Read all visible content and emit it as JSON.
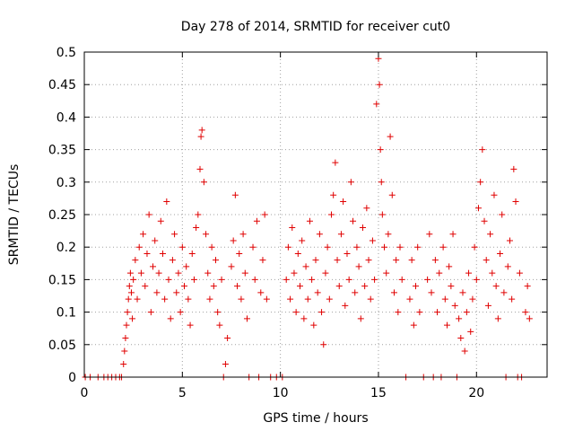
{
  "chart_data": {
    "type": "scatter",
    "title": "Day 278 of 2014, SRMTID for receiver cut0",
    "xlabel": "GPS time / hours",
    "ylabel": "SRMTID / TECUs",
    "xlim": [
      0,
      23.6
    ],
    "ylim": [
      0,
      0.5
    ],
    "xticks": [
      0,
      5,
      10,
      15,
      20
    ],
    "xtick_labels": [
      "0",
      "5",
      "10",
      "15",
      "20"
    ],
    "yticks": [
      0,
      0.05,
      0.1,
      0.15,
      0.2,
      0.25,
      0.3,
      0.35,
      0.4,
      0.45,
      0.5
    ],
    "ytick_labels": [
      "0",
      "0.05",
      "0.1",
      "0.15",
      "0.2",
      "0.25",
      "0.3",
      "0.35",
      "0.4",
      "0.45",
      "0.5"
    ],
    "grid": true,
    "marker": "+",
    "color": "#e00000",
    "series": [
      {
        "name": "SRMTID",
        "points": [
          [
            0.05,
            0
          ],
          [
            0.3,
            0
          ],
          [
            0.7,
            0
          ],
          [
            1.0,
            0
          ],
          [
            1.2,
            0
          ],
          [
            1.4,
            0
          ],
          [
            1.6,
            0
          ],
          [
            1.8,
            0
          ],
          [
            1.9,
            0
          ],
          [
            2.0,
            0.02
          ],
          [
            2.05,
            0.04
          ],
          [
            2.1,
            0.06
          ],
          [
            2.15,
            0.08
          ],
          [
            2.2,
            0.1
          ],
          [
            2.25,
            0.12
          ],
          [
            2.3,
            0.14
          ],
          [
            2.35,
            0.16
          ],
          [
            2.4,
            0.13
          ],
          [
            2.45,
            0.09
          ],
          [
            2.5,
            0.15
          ],
          [
            2.6,
            0.18
          ],
          [
            2.7,
            0.12
          ],
          [
            2.8,
            0.2
          ],
          [
            2.9,
            0.16
          ],
          [
            3.0,
            0.22
          ],
          [
            3.1,
            0.14
          ],
          [
            3.2,
            0.19
          ],
          [
            3.3,
            0.25
          ],
          [
            3.4,
            0.1
          ],
          [
            3.5,
            0.17
          ],
          [
            3.6,
            0.21
          ],
          [
            3.7,
            0.13
          ],
          [
            3.8,
            0.16
          ],
          [
            3.9,
            0.24
          ],
          [
            4.0,
            0.19
          ],
          [
            4.1,
            0.12
          ],
          [
            4.2,
            0.27
          ],
          [
            4.3,
            0.15
          ],
          [
            4.4,
            0.09
          ],
          [
            4.5,
            0.18
          ],
          [
            4.6,
            0.22
          ],
          [
            4.7,
            0.13
          ],
          [
            4.8,
            0.16
          ],
          [
            4.9,
            0.1
          ],
          [
            5.0,
            0.2
          ],
          [
            5.1,
            0.14
          ],
          [
            5.2,
            0.17
          ],
          [
            5.3,
            0.12
          ],
          [
            5.4,
            0.08
          ],
          [
            5.5,
            0.19
          ],
          [
            5.6,
            0.15
          ],
          [
            5.7,
            0.23
          ],
          [
            5.8,
            0.25
          ],
          [
            5.9,
            0.32
          ],
          [
            5.95,
            0.37
          ],
          [
            6.0,
            0.38
          ],
          [
            6.1,
            0.3
          ],
          [
            6.2,
            0.22
          ],
          [
            6.3,
            0.16
          ],
          [
            6.4,
            0.12
          ],
          [
            6.5,
            0.2
          ],
          [
            6.6,
            0.14
          ],
          [
            6.7,
            0.18
          ],
          [
            6.8,
            0.1
          ],
          [
            6.9,
            0.08
          ],
          [
            7.0,
            0.15
          ],
          [
            7.1,
            0.0
          ],
          [
            7.2,
            0.02
          ],
          [
            7.3,
            0.06
          ],
          [
            7.5,
            0.17
          ],
          [
            7.6,
            0.21
          ],
          [
            7.7,
            0.28
          ],
          [
            7.8,
            0.14
          ],
          [
            7.9,
            0.19
          ],
          [
            8.0,
            0.12
          ],
          [
            8.1,
            0.22
          ],
          [
            8.2,
            0.16
          ],
          [
            8.3,
            0.09
          ],
          [
            8.4,
            0.0
          ],
          [
            8.6,
            0.2
          ],
          [
            8.7,
            0.15
          ],
          [
            8.8,
            0.24
          ],
          [
            8.9,
            0.0
          ],
          [
            9.0,
            0.13
          ],
          [
            9.1,
            0.18
          ],
          [
            9.2,
            0.25
          ],
          [
            9.3,
            0.12
          ],
          [
            9.5,
            0.0
          ],
          [
            9.8,
            0.0
          ],
          [
            10.1,
            0.0
          ],
          [
            10.3,
            0.15
          ],
          [
            10.4,
            0.2
          ],
          [
            10.5,
            0.12
          ],
          [
            10.6,
            0.23
          ],
          [
            10.7,
            0.16
          ],
          [
            10.8,
            0.1
          ],
          [
            10.9,
            0.19
          ],
          [
            11.0,
            0.14
          ],
          [
            11.1,
            0.21
          ],
          [
            11.2,
            0.09
          ],
          [
            11.3,
            0.17
          ],
          [
            11.4,
            0.12
          ],
          [
            11.5,
            0.24
          ],
          [
            11.6,
            0.15
          ],
          [
            11.7,
            0.08
          ],
          [
            11.8,
            0.18
          ],
          [
            11.9,
            0.13
          ],
          [
            12.0,
            0.22
          ],
          [
            12.1,
            0.1
          ],
          [
            12.2,
            0.05
          ],
          [
            12.3,
            0.16
          ],
          [
            12.4,
            0.2
          ],
          [
            12.5,
            0.12
          ],
          [
            12.6,
            0.25
          ],
          [
            12.7,
            0.28
          ],
          [
            12.8,
            0.33
          ],
          [
            12.9,
            0.18
          ],
          [
            13.0,
            0.14
          ],
          [
            13.1,
            0.22
          ],
          [
            13.2,
            0.27
          ],
          [
            13.3,
            0.11
          ],
          [
            13.4,
            0.19
          ],
          [
            13.5,
            0.15
          ],
          [
            13.6,
            0.3
          ],
          [
            13.7,
            0.24
          ],
          [
            13.8,
            0.13
          ],
          [
            13.9,
            0.2
          ],
          [
            14.0,
            0.17
          ],
          [
            14.1,
            0.09
          ],
          [
            14.2,
            0.23
          ],
          [
            14.3,
            0.14
          ],
          [
            14.4,
            0.26
          ],
          [
            14.5,
            0.18
          ],
          [
            14.6,
            0.12
          ],
          [
            14.7,
            0.21
          ],
          [
            14.8,
            0.15
          ],
          [
            14.9,
            0.42
          ],
          [
            15.0,
            0.49
          ],
          [
            15.05,
            0.45
          ],
          [
            15.1,
            0.35
          ],
          [
            15.15,
            0.3
          ],
          [
            15.2,
            0.25
          ],
          [
            15.3,
            0.2
          ],
          [
            15.4,
            0.16
          ],
          [
            15.5,
            0.22
          ],
          [
            15.6,
            0.37
          ],
          [
            15.7,
            0.28
          ],
          [
            15.8,
            0.13
          ],
          [
            15.9,
            0.18
          ],
          [
            16.0,
            0.1
          ],
          [
            16.1,
            0.2
          ],
          [
            16.2,
            0.15
          ],
          [
            16.4,
            0.0
          ],
          [
            16.6,
            0.12
          ],
          [
            16.7,
            0.18
          ],
          [
            16.8,
            0.08
          ],
          [
            16.9,
            0.14
          ],
          [
            17.0,
            0.2
          ],
          [
            17.1,
            0.1
          ],
          [
            17.3,
            0.0
          ],
          [
            17.5,
            0.15
          ],
          [
            17.6,
            0.22
          ],
          [
            17.7,
            0.13
          ],
          [
            17.8,
            0.0
          ],
          [
            17.9,
            0.18
          ],
          [
            18.0,
            0.1
          ],
          [
            18.1,
            0.16
          ],
          [
            18.2,
            0.0
          ],
          [
            18.3,
            0.2
          ],
          [
            18.4,
            0.12
          ],
          [
            18.5,
            0.08
          ],
          [
            18.6,
            0.17
          ],
          [
            18.7,
            0.14
          ],
          [
            18.8,
            0.22
          ],
          [
            18.9,
            0.11
          ],
          [
            19.0,
            0.0
          ],
          [
            19.1,
            0.09
          ],
          [
            19.2,
            0.06
          ],
          [
            19.3,
            0.13
          ],
          [
            19.4,
            0.04
          ],
          [
            19.5,
            0.1
          ],
          [
            19.6,
            0.16
          ],
          [
            19.7,
            0.07
          ],
          [
            19.8,
            0.12
          ],
          [
            19.9,
            0.2
          ],
          [
            20.0,
            0.15
          ],
          [
            20.1,
            0.26
          ],
          [
            20.2,
            0.3
          ],
          [
            20.3,
            0.35
          ],
          [
            20.4,
            0.24
          ],
          [
            20.5,
            0.18
          ],
          [
            20.6,
            0.11
          ],
          [
            20.7,
            0.22
          ],
          [
            20.8,
            0.16
          ],
          [
            20.9,
            0.28
          ],
          [
            21.0,
            0.14
          ],
          [
            21.1,
            0.09
          ],
          [
            21.2,
            0.19
          ],
          [
            21.3,
            0.25
          ],
          [
            21.4,
            0.13
          ],
          [
            21.5,
            0.0
          ],
          [
            21.6,
            0.17
          ],
          [
            21.7,
            0.21
          ],
          [
            21.8,
            0.12
          ],
          [
            21.9,
            0.32
          ],
          [
            22.0,
            0.27
          ],
          [
            22.1,
            0.0
          ],
          [
            22.2,
            0.16
          ],
          [
            22.3,
            0.0
          ],
          [
            22.5,
            0.1
          ],
          [
            22.6,
            0.14
          ],
          [
            22.7,
            0.09
          ]
        ]
      }
    ]
  }
}
